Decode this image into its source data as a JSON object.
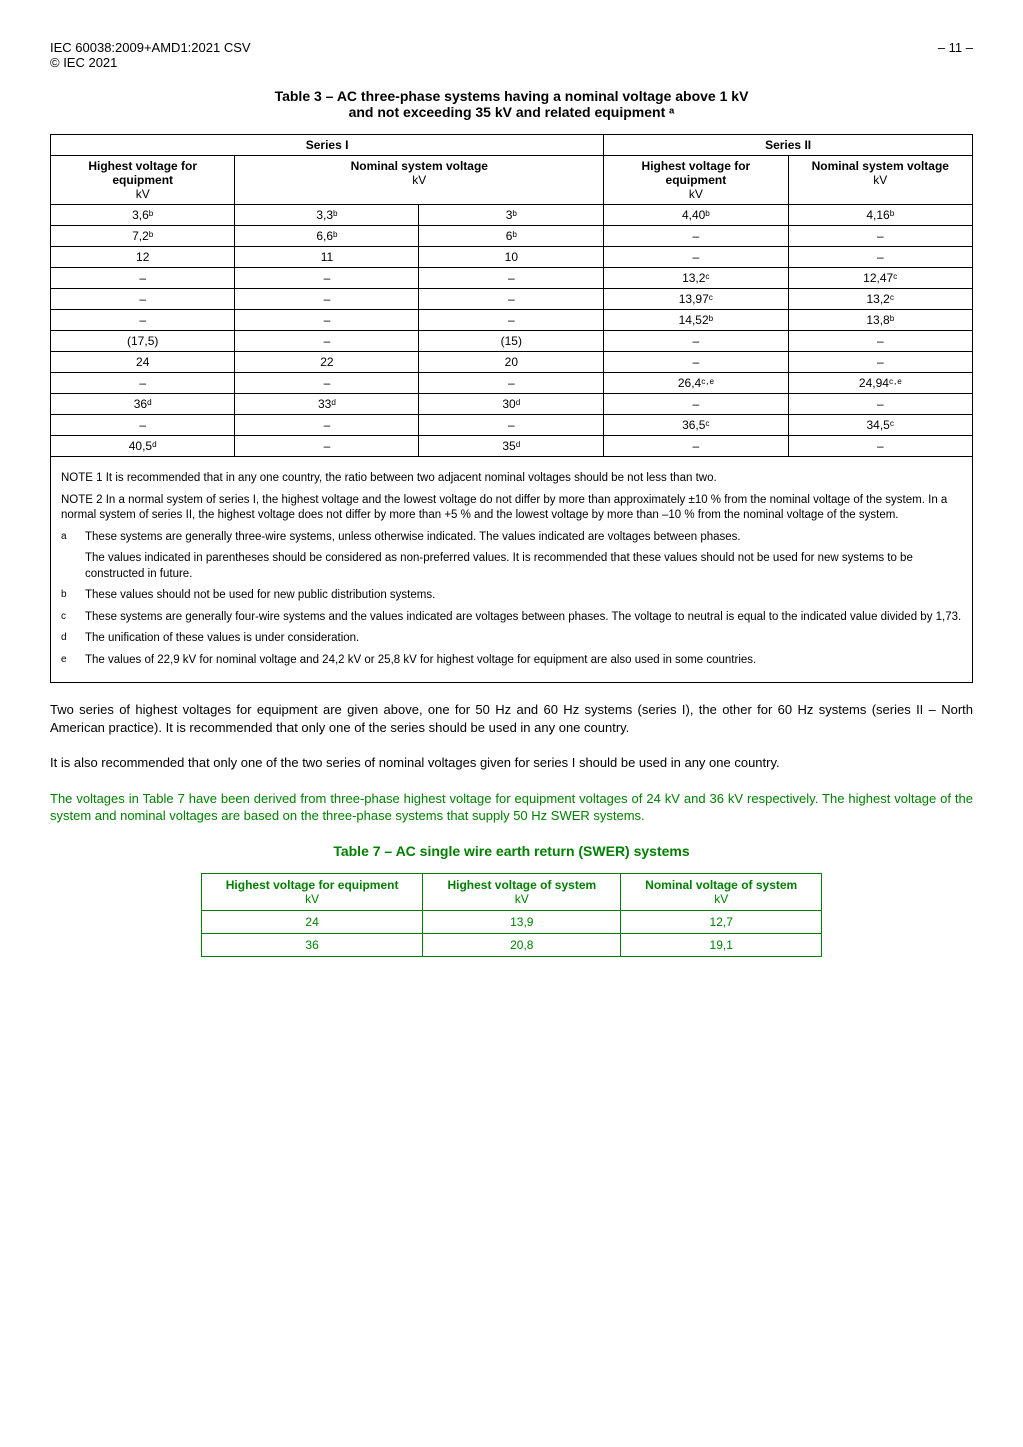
{
  "header": {
    "left_line1": "IEC 60038:2009+AMD1:2021 CSV",
    "left_line2": "© IEC 2021",
    "right": "– 11 –"
  },
  "table3": {
    "title_l1": "Table 3 – AC three-phase systems having a nominal voltage above 1 kV",
    "title_l2": "and not exceeding 35 kV and related equipment ᵃ",
    "series1": "Series I",
    "series2": "Series II",
    "h_hv": "Highest voltage for equipment",
    "h_ns": "Nominal system voltage",
    "kv": "kV",
    "rows": [
      {
        "c1": "3,6ᵇ",
        "c2": "3,3ᵇ",
        "c3": "3ᵇ",
        "c4": "4,40ᵇ",
        "c5": "4,16ᵇ"
      },
      {
        "c1": "7,2ᵇ",
        "c2": "6,6ᵇ",
        "c3": "6ᵇ",
        "c4": "–",
        "c5": "–"
      },
      {
        "c1": "12",
        "c2": "11",
        "c3": "10",
        "c4": "–",
        "c5": "–"
      },
      {
        "c1": "–",
        "c2": "–",
        "c3": "–",
        "c4": "13,2ᶜ",
        "c5": "12,47ᶜ"
      },
      {
        "c1": "–",
        "c2": "–",
        "c3": "–",
        "c4": "13,97ᶜ",
        "c5": "13,2ᶜ"
      },
      {
        "c1": "–",
        "c2": "–",
        "c3": "–",
        "c4": "14,52ᵇ",
        "c5": "13,8ᵇ"
      },
      {
        "c1": "(17,5)",
        "c2": "–",
        "c3": "(15)",
        "c4": "–",
        "c5": "–"
      },
      {
        "c1": "24",
        "c2": "22",
        "c3": "20",
        "c4": "–",
        "c5": "–"
      },
      {
        "c1": "–",
        "c2": "–",
        "c3": "–",
        "c4": "26,4ᶜ·ᵉ",
        "c5": "24,94ᶜ·ᵉ"
      },
      {
        "c1": "36ᵈ",
        "c2": "33ᵈ",
        "c3": "30ᵈ",
        "c4": "–",
        "c5": "–"
      },
      {
        "c1": "–",
        "c2": "–",
        "c3": "–",
        "c4": "36,5ᶜ",
        "c5": "34,5ᶜ"
      },
      {
        "c1": "40,5ᵈ",
        "c2": "–",
        "c3": "35ᵈ",
        "c4": "–",
        "c5": "–"
      }
    ],
    "note1": "NOTE 1   It is recommended that in any one country, the ratio between two adjacent nominal voltages should be not less than two.",
    "note2": "NOTE 2   In a normal system of series I, the highest voltage and the lowest voltage do not differ by more than approximately ±10 % from the nominal voltage of the system. In a normal system of series II, the highest voltage does not differ by more than +5 % and the lowest voltage by more than –10 % from the nominal voltage of the system.",
    "fn_a1": "These systems are generally three-wire systems, unless otherwise indicated. The values indicated are voltages between phases.",
    "fn_a2": "The values indicated in parentheses should be considered as non-preferred values. It is recommended that these values should not be used for new systems to be constructed in future.",
    "fn_b": "These values should not be used for new public distribution systems.",
    "fn_c": "These systems are generally four-wire systems and the values indicated are voltages between phases. The voltage to neutral is equal to the indicated value divided by 1,73.",
    "fn_d": "The unification of these values is under consideration.",
    "fn_e": "The values of 22,9 kV for nominal voltage and 24,2 kV or 25,8 kV for highest voltage for equipment are also used in some countries."
  },
  "paras": {
    "p1": "Two series of highest voltages for equipment are given above, one for 50 Hz and 60 Hz systems (series I), the other for 60 Hz systems (series II – North American practice). It is recommended that only one of the series should be used in any one country.",
    "p2": "It is also recommended that only one of the two series of nominal voltages given for series I should be used in any one country.",
    "p3": "The voltages in Table 7 have been derived from three-phase highest voltage for equipment voltages of 24 kV and 36 kV respectively. The highest voltage of the system and nominal voltages are based on the three-phase systems that supply 50 Hz SWER systems."
  },
  "table7": {
    "title": "Table 7 – AC single wire earth return (SWER) systems",
    "h1": "Highest voltage for equipment",
    "h2": "Highest voltage of system",
    "h3": "Nominal voltage of system",
    "kv": "kV",
    "rows": [
      {
        "c1": "24",
        "c2": "13,9",
        "c3": "12,7"
      },
      {
        "c1": "36",
        "c2": "20,8",
        "c3": "19,1"
      }
    ]
  }
}
